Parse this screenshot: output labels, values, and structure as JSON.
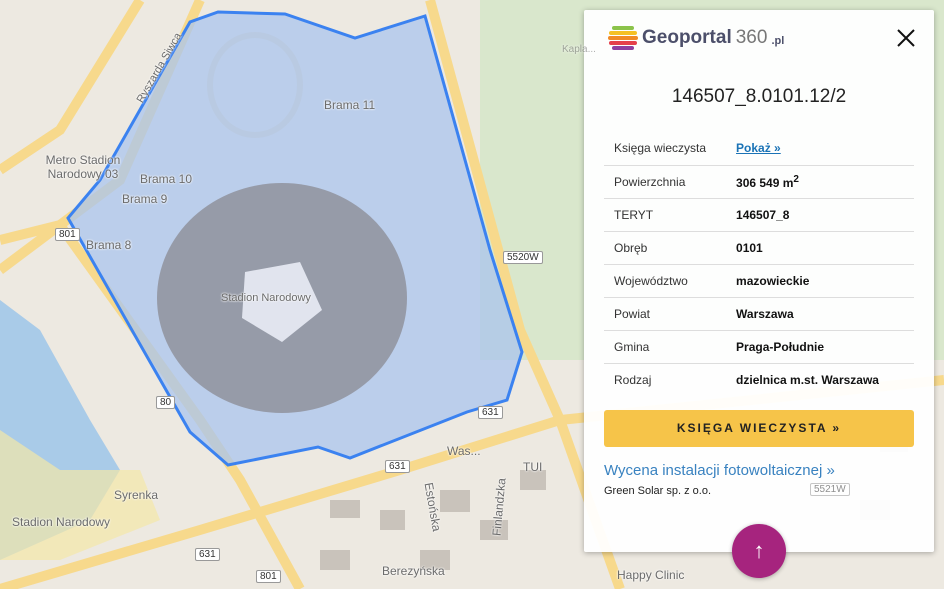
{
  "map": {
    "labels": [
      "Brama 11",
      "Brama 10",
      "Brama 9",
      "Brama 8",
      "Stadion Narodowy",
      "Metro Stadion Narodowy 03",
      "Syrenka",
      "Stadion Narodowy",
      "Berezyńska",
      "Estońska",
      "Finlandzka",
      "Happy Clinic",
      "TUI",
      "Was...",
      "Kapla..."
    ],
    "street_label": "Ryszarda Siwca",
    "road_shields": [
      "801",
      "80",
      "631",
      "631",
      "631",
      "801",
      "5520W",
      "631",
      "5521W",
      "5520W"
    ],
    "colors": {
      "parcel_fill": "#a9c4ee",
      "parcel_stroke": "#3b82f0",
      "road": "#f7d98c",
      "water": "#a9cbe8",
      "park": "#cfe3bf"
    }
  },
  "panel": {
    "logo": {
      "name": "Geoportal",
      "num": "360",
      "tld": ".pl"
    },
    "title": "146507_8.0101.12/2",
    "rows": [
      {
        "label": "Księga wieczysta",
        "value": "Pokaż »",
        "link": true
      },
      {
        "label": "Powierzchnia",
        "value": "306 549 m",
        "sup": "2"
      },
      {
        "label": "TERYT",
        "value": "146507_8"
      },
      {
        "label": "Obręb",
        "value": "0101"
      },
      {
        "label": "Województwo",
        "value": "mazowieckie"
      },
      {
        "label": "Powiat",
        "value": "Warszawa"
      },
      {
        "label": "Gmina",
        "value": "Praga-Południe"
      },
      {
        "label": "Rodzaj",
        "value": "dzielnica m.st. Warszawa"
      }
    ],
    "button": "KSIĘGA WIECZYSTA »",
    "pv_link": "Wycena instalacji fotowoltaicznej »",
    "pv_company": "Green Solar sp. z o.o.",
    "accent": "#f6c449"
  },
  "fab": {
    "icon": "arrow-up-icon",
    "label": "↑",
    "color": "#a6247e"
  }
}
